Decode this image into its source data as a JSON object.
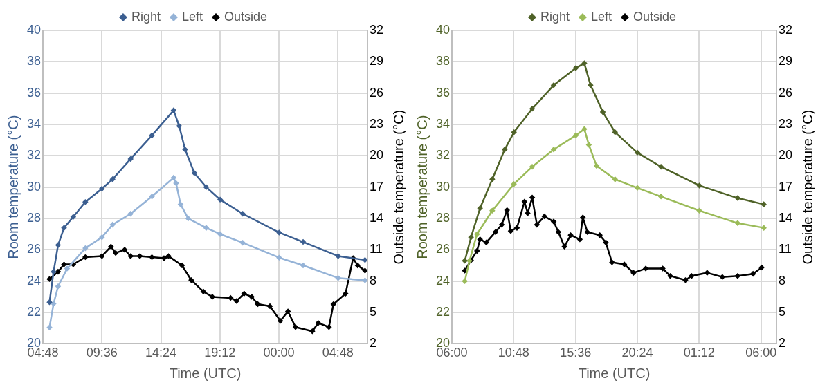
{
  "chart_data": [
    {
      "type": "line",
      "xlabel": "Time (UTC)",
      "ylabel": "Room temperature (°C)",
      "y2label": "Outside temperature (°C)",
      "legend": "top",
      "grid": true,
      "marker": "diamond",
      "line_style": "solid",
      "xlim": [
        "--01-01T04:48",
        "--01-02T07:12"
      ],
      "xticks": [
        {
          "value": "--01-01T04:48",
          "label": "04:48"
        },
        {
          "value": "--01-01T09:36",
          "label": "09:36"
        },
        {
          "value": "--01-01T14:24",
          "label": "14:24"
        },
        {
          "value": "--01-01T19:12",
          "label": "19:12"
        },
        {
          "value": "--01-02T00:00",
          "label": "00:00"
        },
        {
          "value": "--01-02T04:48",
          "label": "04:48"
        }
      ],
      "ylim": [
        20,
        40
      ],
      "yticks": [
        20,
        22,
        24,
        26,
        28,
        30,
        32,
        34,
        36,
        38,
        40
      ],
      "y2lim": [
        2,
        32
      ],
      "y2ticks": [
        2,
        5,
        8,
        11,
        14,
        17,
        20,
        23,
        26,
        29,
        32
      ],
      "series": [
        {
          "name": "Right",
          "color": "#3c5f91",
          "x": [
            "--01-01T05:20",
            "--01-01T05:40",
            "--01-01T06:02",
            "--01-01T06:31",
            "--01-01T07:16",
            "--01-01T08:15",
            "--01-01T09:36",
            "--01-01T10:28",
            "--01-01T11:56",
            "--01-01T13:40",
            "--01-01T15:26",
            "--01-01T15:53",
            "--01-01T16:22",
            "--01-01T17:07",
            "--01-01T18:05",
            "--01-01T19:13",
            "--01-01T21:03",
            "--01-02T00:01",
            "--01-02T01:58",
            "--01-02T04:49",
            "--01-02T07:00"
          ],
          "values": [
            22.65,
            24.6,
            26.3,
            27.4,
            28.1,
            29.05,
            29.9,
            30.5,
            31.8,
            33.3,
            34.9,
            33.9,
            32.4,
            30.9,
            30.0,
            29.2,
            28.3,
            27.1,
            26.5,
            25.6,
            25.35
          ]
        },
        {
          "name": "Left",
          "color": "#95b3d7",
          "x": [
            "--01-01T05:20",
            "--01-01T05:40",
            "--01-01T06:02",
            "--01-01T06:46",
            "--01-01T08:15",
            "--01-01T09:36",
            "--01-01T10:28",
            "--01-01T11:56",
            "--01-01T13:40",
            "--01-01T15:26",
            "--01-01T15:38",
            "--01-01T16:00",
            "--01-01T16:37",
            "--01-01T18:05",
            "--01-01T19:13",
            "--01-01T21:03",
            "--01-02T00:01",
            "--01-02T01:58",
            "--01-02T04:49",
            "--01-02T07:00"
          ],
          "values": [
            21.04,
            22.56,
            23.67,
            24.8,
            26.1,
            26.8,
            27.6,
            28.3,
            29.4,
            30.6,
            30.25,
            28.9,
            28.0,
            27.4,
            27.0,
            26.45,
            25.5,
            25.0,
            24.2,
            24.05
          ]
        },
        {
          "name": "Outside",
          "color": "#000000",
          "axis": "y2",
          "x": [
            "--01-01T05:20",
            "--01-01T06:02",
            "--01-01T06:31",
            "--01-01T07:16",
            "--01-01T08:15",
            "--01-01T09:36",
            "--01-01T10:20",
            "--01-01T10:43",
            "--01-01T11:27",
            "--01-01T11:56",
            "--01-01T12:41",
            "--01-01T13:40",
            "--01-01T14:39",
            "--01-01T15:01",
            "--01-01T16:07",
            "--01-01T16:52",
            "--01-01T17:51",
            "--01-01T18:35",
            "--01-01T20:04",
            "--01-01T20:33",
            "--01-01T21:10",
            "--01-01T21:47",
            "--01-01T22:17",
            "--01-01T23:16",
            "--01-02T00:07",
            "--01-02T00:44",
            "--01-02T01:21",
            "--01-02T02:43",
            "--01-02T03:12",
            "--01-02T04:04",
            "--01-02T04:26",
            "--01-02T05:25",
            "--01-02T06:02",
            "--01-02T06:24",
            "--01-02T07:00"
          ],
          "values": [
            8.2,
            8.9,
            9.6,
            9.6,
            10.3,
            10.4,
            11.3,
            10.7,
            11.0,
            10.4,
            10.4,
            10.3,
            10.2,
            10.4,
            9.5,
            8.1,
            7.0,
            6.5,
            6.4,
            6.1,
            6.8,
            6.5,
            5.8,
            5.6,
            4.2,
            5.1,
            3.6,
            3.2,
            4.0,
            3.6,
            5.8,
            6.8,
            10.2,
            9.5,
            9.0
          ]
        }
      ]
    },
    {
      "type": "line",
      "xlabel": "Time (UTC)",
      "ylabel": "Room temperature (°C)",
      "y2label": "Outside temperature (°C)",
      "legend": "top",
      "grid": true,
      "marker": "diamond",
      "line_style": "solid",
      "xlim": [
        "--01-01T06:00",
        "--01-02T07:12"
      ],
      "xticks": [
        {
          "value": "--01-01T06:00",
          "label": "06:00"
        },
        {
          "value": "--01-01T10:48",
          "label": "10:48"
        },
        {
          "value": "--01-01T15:36",
          "label": "15:36"
        },
        {
          "value": "--01-01T20:24",
          "label": "20:24"
        },
        {
          "value": "--01-02T01:12",
          "label": "01:12"
        },
        {
          "value": "--01-02T06:00",
          "label": "06:00"
        }
      ],
      "ylim": [
        20,
        40
      ],
      "yticks": [
        20,
        22,
        24,
        26,
        28,
        30,
        32,
        34,
        36,
        38,
        40
      ],
      "y2lim": [
        2,
        32
      ],
      "y2ticks": [
        2,
        5,
        8,
        11,
        14,
        17,
        20,
        23,
        26,
        29,
        32
      ],
      "series": [
        {
          "name": "Right",
          "color": "#4f6228",
          "x": [
            "--01-01T07:00",
            "--01-01T07:29",
            "--01-01T08:11",
            "--01-01T09:08",
            "--01-01T10:06",
            "--01-01T10:49",
            "--01-01T12:14",
            "--01-01T13:54",
            "--01-01T15:37",
            "--01-01T16:17",
            "--01-01T16:46",
            "--01-01T17:43",
            "--01-01T18:40",
            "--01-01T20:24",
            "--01-01T22:14",
            "--01-02T01:13",
            "--01-02T04:11",
            "--01-02T06:13"
          ],
          "values": [
            25.3,
            26.8,
            28.65,
            30.5,
            32.4,
            33.5,
            35.0,
            36.5,
            37.6,
            37.9,
            36.5,
            34.8,
            33.5,
            32.2,
            31.3,
            30.1,
            29.3,
            28.9
          ]
        },
        {
          "name": "Left",
          "color": "#9bbb59",
          "x": [
            "--01-01T07:00",
            "--01-01T07:22",
            "--01-01T07:57",
            "--01-01T09:08",
            "--01-01T10:49",
            "--01-01T12:14",
            "--01-01T13:54",
            "--01-01T15:37",
            "--01-01T16:17",
            "--01-01T16:38",
            "--01-01T17:14",
            "--01-01T18:40",
            "--01-01T20:24",
            "--01-01T22:14",
            "--01-02T01:13",
            "--01-02T04:11",
            "--01-02T06:13"
          ],
          "values": [
            24.0,
            25.3,
            27.0,
            28.5,
            30.2,
            31.3,
            32.4,
            33.3,
            33.7,
            32.7,
            31.35,
            30.5,
            29.95,
            29.4,
            28.5,
            27.7,
            27.4
          ]
        },
        {
          "name": "Outside",
          "color": "#000000",
          "axis": "y2",
          "x": [
            "--01-01T07:00",
            "--01-01T07:29",
            "--01-01T07:57",
            "--01-01T08:11",
            "--01-01T08:40",
            "--01-01T09:23",
            "--01-01T09:52",
            "--01-01T10:17",
            "--01-01T10:34",
            "--01-01T11:03",
            "--01-01T11:38",
            "--01-01T11:53",
            "--01-01T12:14",
            "--01-01T12:36",
            "--01-01T13:11",
            "--01-01T13:54",
            "--01-01T14:16",
            "--01-01T14:44",
            "--01-01T15:13",
            "--01-01T15:56",
            "--01-01T16:10",
            "--01-01T16:31",
            "--01-01T17:29",
            "--01-01T17:57",
            "--01-01T18:26",
            "--01-01T19:23",
            "--01-01T20:06",
            "--01-01T21:03",
            "--01-01T22:22",
            "--01-01T22:57",
            "--01-02T00:08",
            "--01-02T00:37",
            "--01-02T01:49",
            "--01-02T03:00",
            "--01-02T04:11",
            "--01-02T05:23",
            "--01-02T06:03"
          ],
          "values": [
            9.0,
            10.0,
            10.9,
            12.0,
            11.7,
            12.7,
            13.4,
            14.8,
            12.8,
            13.1,
            15.6,
            14.5,
            16.0,
            13.4,
            14.2,
            13.7,
            12.7,
            11.3,
            12.4,
            12.0,
            14.1,
            12.7,
            12.4,
            11.7,
            9.8,
            9.6,
            8.8,
            9.2,
            9.2,
            8.5,
            8.1,
            8.5,
            8.8,
            8.4,
            8.5,
            8.7,
            9.3
          ]
        }
      ]
    }
  ]
}
